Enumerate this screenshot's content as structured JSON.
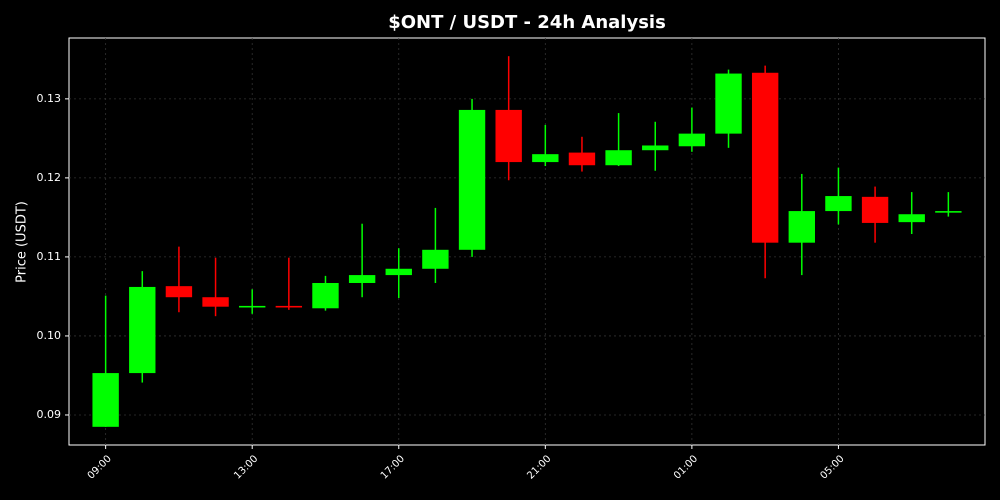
{
  "chart_data": {
    "type": "candlestick",
    "title": "$ONT / USDT - 24h Analysis",
    "ylabel": "Price (USDT)",
    "categories": [
      "09:00",
      null,
      null,
      null,
      "13:00",
      null,
      null,
      null,
      "17:00",
      null,
      null,
      null,
      "21:00",
      null,
      null,
      null,
      "01:00",
      null,
      null,
      null,
      "05:00",
      null,
      null,
      null
    ],
    "open": [
      0.0885,
      0.0953,
      0.1063,
      0.1049,
      0.1036,
      0.1038,
      0.1035,
      0.1067,
      0.1077,
      0.1085,
      0.1109,
      0.1286,
      0.122,
      0.1232,
      0.1216,
      0.1235,
      0.124,
      0.1256,
      0.1333,
      0.1118,
      0.1158,
      0.1176,
      0.1144,
      0.1156
    ],
    "high": [
      0.1051,
      0.1082,
      0.1113,
      0.1099,
      0.1059,
      0.1099,
      0.1076,
      0.1142,
      0.1111,
      0.1162,
      0.13,
      0.1354,
      0.1267,
      0.1252,
      0.1282,
      0.1271,
      0.1289,
      0.1337,
      0.1342,
      0.1205,
      0.1213,
      0.1189,
      0.1182,
      0.1182
    ],
    "low": [
      0.0885,
      0.0941,
      0.103,
      0.1025,
      0.1028,
      0.1033,
      0.1032,
      0.1049,
      0.1048,
      0.1067,
      0.11,
      0.1197,
      0.1215,
      0.1208,
      0.1215,
      0.1209,
      0.1233,
      0.1238,
      0.1073,
      0.1077,
      0.1141,
      0.1118,
      0.1129,
      0.1151
    ],
    "close": [
      0.0953,
      0.1062,
      0.1049,
      0.1037,
      0.1038,
      0.1036,
      0.1067,
      0.1077,
      0.1085,
      0.1109,
      0.1286,
      0.122,
      0.123,
      0.1216,
      0.1235,
      0.1241,
      0.1256,
      0.1332,
      0.1118,
      0.1158,
      0.1177,
      0.1143,
      0.1154,
      0.1158
    ],
    "up_color": "#00ff00",
    "down_color": "#ff0000",
    "ylim": [
      0.0862,
      0.1377
    ],
    "yticks": [
      0.09,
      {
        "value": 0.1,
        "label": "0.10"
      },
      0.11,
      0.12,
      0.13
    ],
    "grid": true
  }
}
